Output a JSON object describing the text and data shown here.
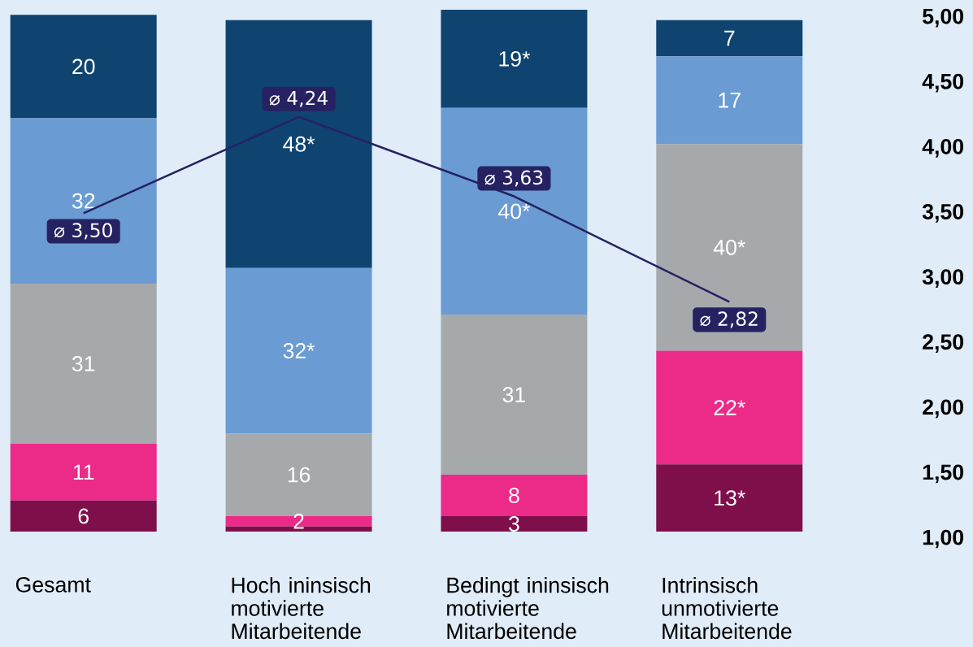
{
  "chart_data": {
    "type": "bar",
    "stacked": true,
    "categories": [
      "Gesamt",
      "Hoch ininsisch motivierte Mitarbeitende",
      "Bedingt ininsisch motivierte Mitarbeitende",
      "Intrinsisch unmotivierte Mitarbeitende"
    ],
    "y2lim": [
      1,
      5
    ],
    "y2ticks": [
      {
        "value": 1,
        "label": "1,00"
      },
      {
        "value": 1.5,
        "label": "1,50"
      },
      {
        "value": 2,
        "label": "2,00"
      },
      {
        "value": 2.5,
        "label": "2,50"
      },
      {
        "value": 3,
        "label": "3,00"
      },
      {
        "value": 3.5,
        "label": "3,50"
      },
      {
        "value": 4,
        "label": "4,00"
      },
      {
        "value": 4.5,
        "label": "4,50"
      },
      {
        "value": 5,
        "label": "5,00"
      }
    ],
    "series": [
      {
        "color": "#7f0f4a",
        "values": [
          6,
          1,
          3,
          13
        ],
        "value_labels": [
          "6",
          null,
          "3",
          "13*"
        ]
      },
      {
        "color": "#ec2a88",
        "values": [
          11,
          2,
          8,
          22
        ],
        "value_labels": [
          "11",
          "2",
          "8",
          "22*"
        ]
      },
      {
        "color": "#a6a9ac",
        "values": [
          31,
          16,
          31,
          40
        ],
        "value_labels": [
          "31",
          "16",
          "31",
          "40*"
        ]
      },
      {
        "color": "#6a9bd3",
        "values": [
          32,
          32,
          40,
          17
        ],
        "value_labels": [
          "32",
          "32*",
          "40*",
          "17"
        ]
      },
      {
        "color": "#0f4470",
        "values": [
          20,
          48,
          19,
          7
        ],
        "value_labels": [
          "20",
          "48*",
          "19*",
          "7"
        ]
      },
      {
        "type": "line",
        "axis": "y2",
        "color": "#262262",
        "marker": "none",
        "values": [
          3.5,
          4.24,
          3.63,
          2.82
        ],
        "value_labels": [
          "⌀ 3,50",
          "⌀ 4,24",
          "⌀ 3,63",
          "⌀ 2,82"
        ]
      }
    ]
  }
}
